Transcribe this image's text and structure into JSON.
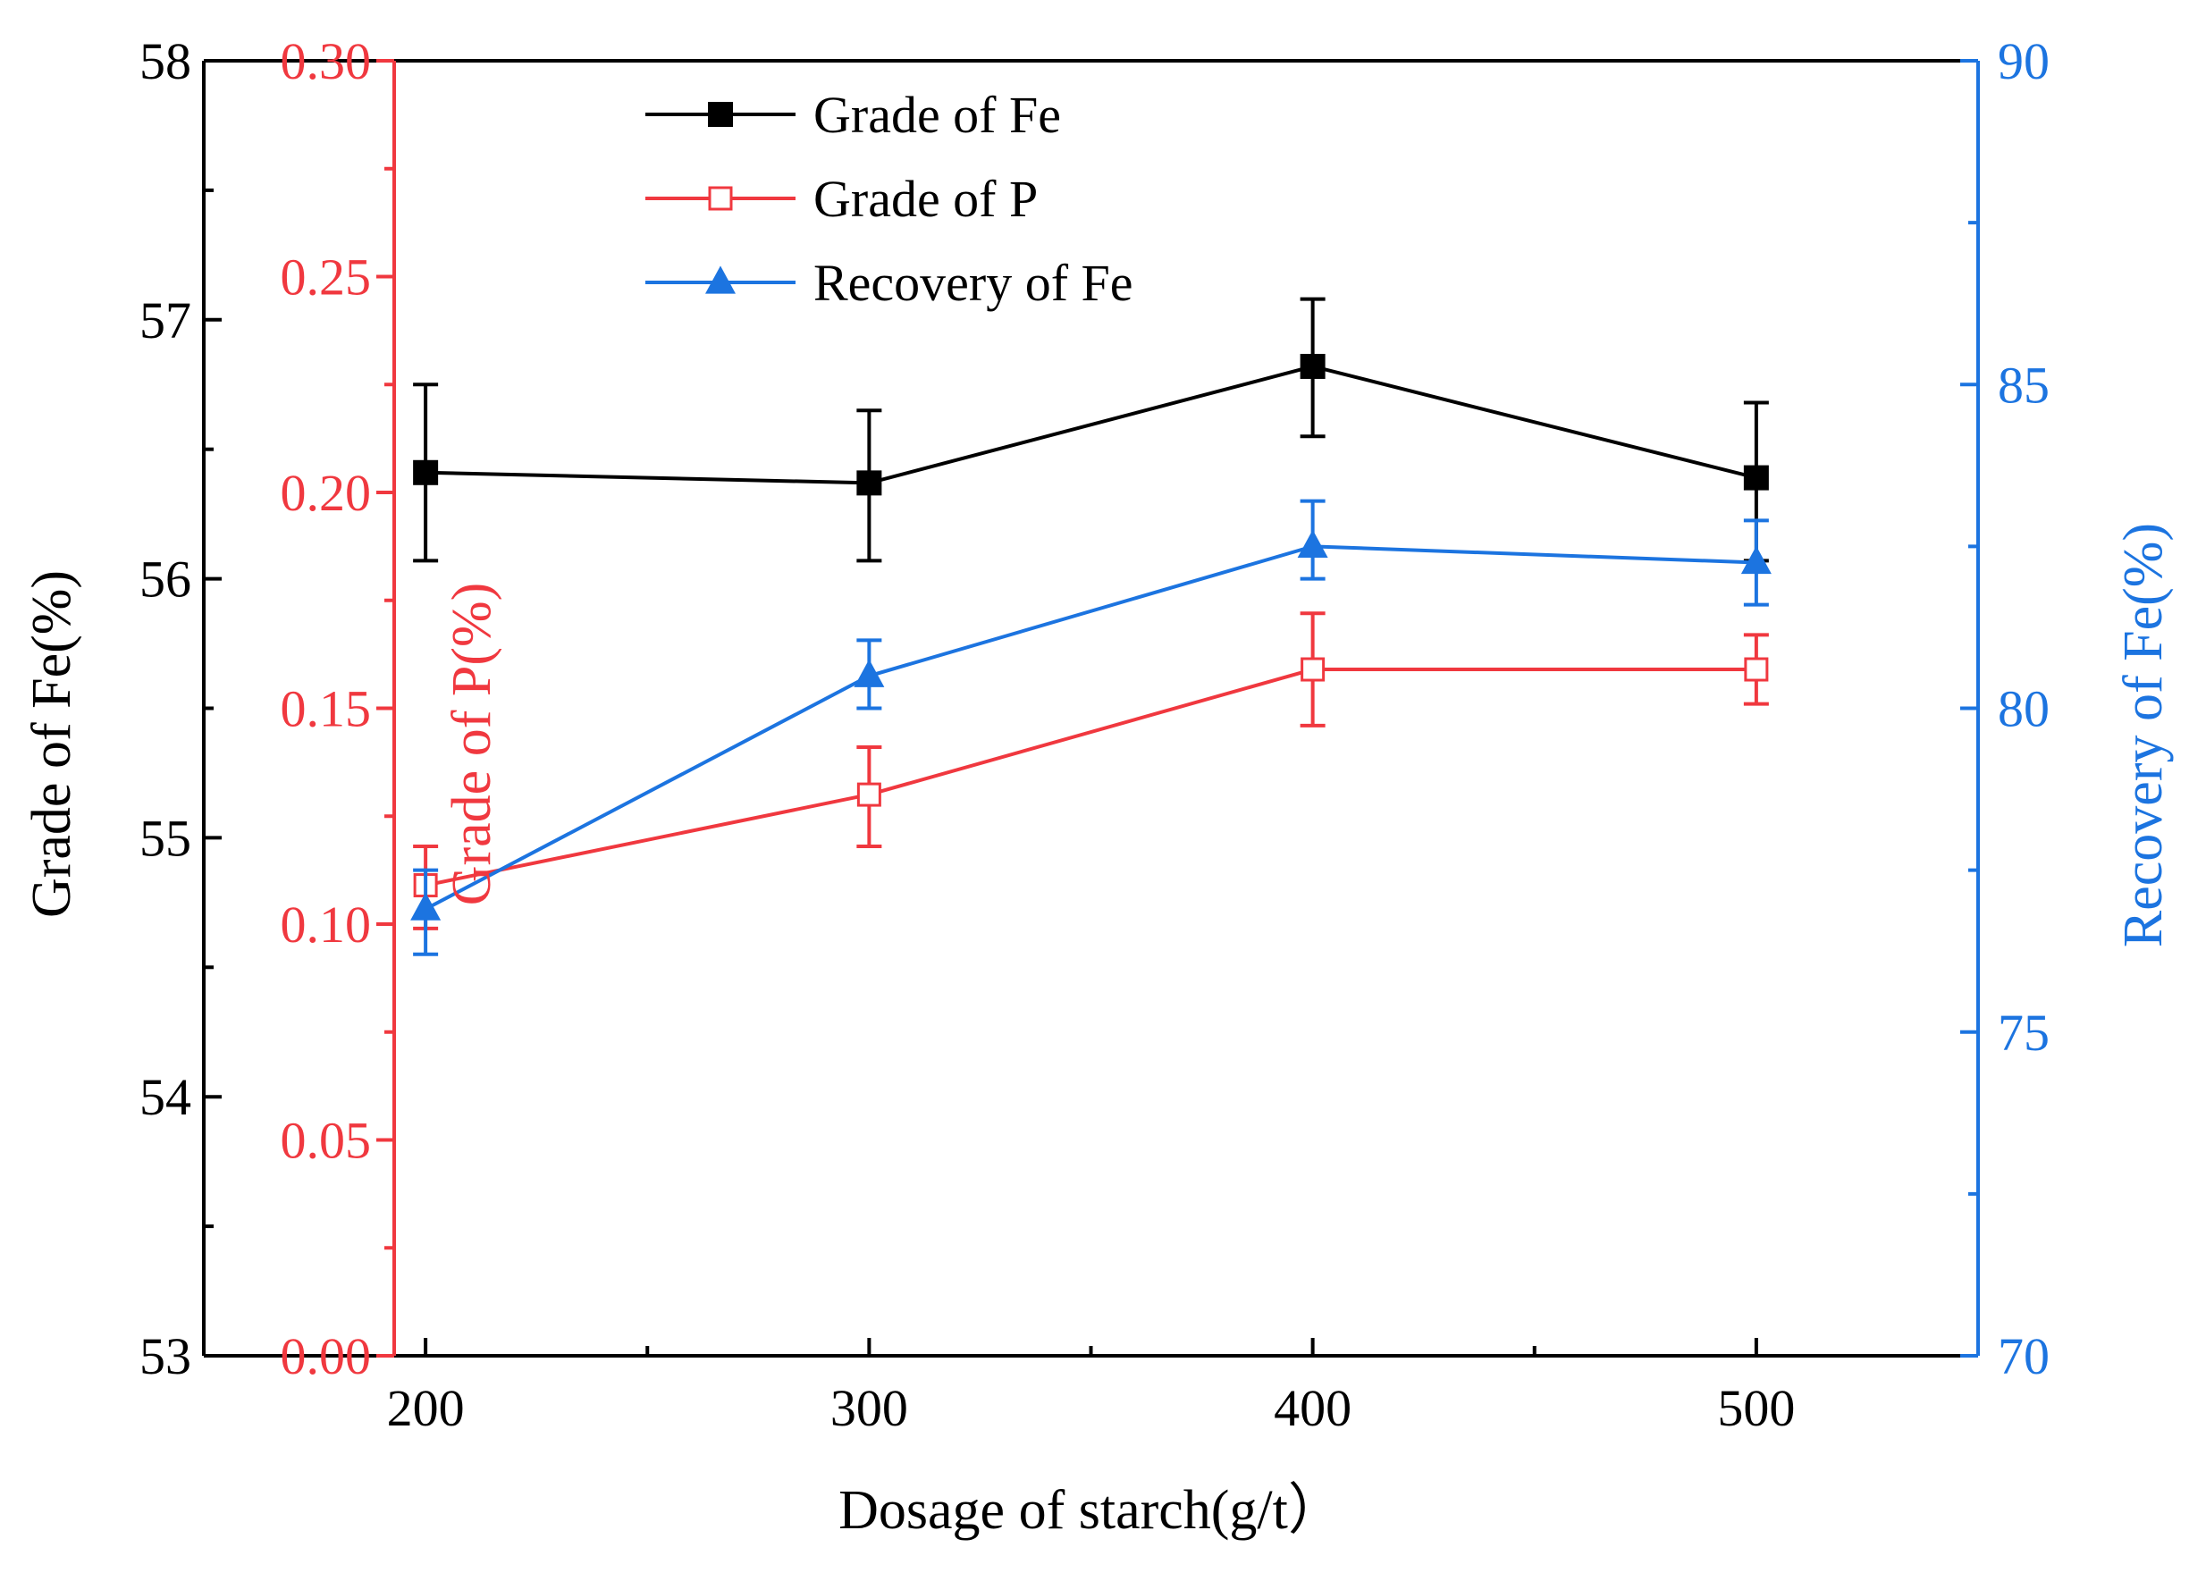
{
  "chart_data": {
    "type": "line",
    "title": "",
    "xlabel": "Dosage of starch(g/t）",
    "x": [
      200,
      300,
      400,
      500
    ],
    "xlim": [
      150,
      550
    ],
    "xticks": [
      "200",
      "300",
      "400",
      "500"
    ],
    "axes": {
      "fe_grade": {
        "label": "Grade of  Fe(%)",
        "ylim": [
          53,
          58
        ],
        "ticks": [
          "53",
          "54",
          "55",
          "56",
          "57",
          "58"
        ],
        "color": "#000000"
      },
      "p_grade": {
        "label": "Grade of  P(%)",
        "ylim": [
          0,
          0.3
        ],
        "ticks": [
          "0.00",
          "0.05",
          "0.10",
          "0.15",
          "0.20",
          "0.25",
          "0.30"
        ],
        "color": "#f0383f"
      },
      "fe_recovery": {
        "label": "Recovery of  Fe(%)",
        "ylim": [
          70,
          90
        ],
        "ticks": [
          "70",
          "75",
          "80",
          "85",
          "90"
        ],
        "color": "#1c74e0"
      }
    },
    "series": [
      {
        "name": "Grade of  Fe",
        "axis": "fe_grade",
        "marker": "filled-square",
        "color": "#000000",
        "values": [
          56.41,
          56.37,
          56.82,
          56.39
        ],
        "err_low": [
          56.07,
          56.07,
          56.55,
          56.07
        ],
        "err_high": [
          56.75,
          56.65,
          57.08,
          56.68
        ]
      },
      {
        "name": "Grade of  P",
        "axis": "p_grade",
        "marker": "open-square",
        "color": "#f0383f",
        "values": [
          0.109,
          0.13,
          0.159,
          0.159
        ],
        "err_low": [
          0.099,
          0.118,
          0.146,
          0.151
        ],
        "err_high": [
          0.118,
          0.141,
          0.172,
          0.167
        ]
      },
      {
        "name": "Recovery of  Fe",
        "axis": "fe_recovery",
        "marker": "filled-triangle",
        "color": "#1c74e0",
        "values": [
          76.9,
          80.5,
          82.5,
          82.25
        ],
        "err_low": [
          76.2,
          80.0,
          82.0,
          81.6
        ],
        "err_high": [
          77.5,
          81.05,
          83.2,
          82.9
        ]
      }
    ]
  }
}
